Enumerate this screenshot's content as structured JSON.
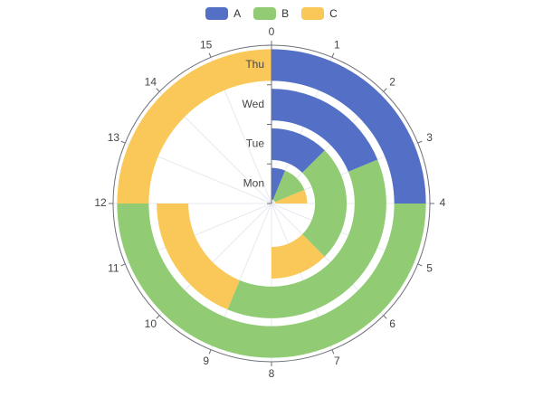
{
  "chart_data": {
    "type": "polar-stacked-bar",
    "angle_axis": {
      "min": 0,
      "max": 16,
      "ticks": [
        0,
        1,
        2,
        3,
        4,
        5,
        6,
        7,
        8,
        9,
        10,
        11,
        12,
        13,
        14,
        15
      ]
    },
    "categories": [
      "Mon",
      "Tue",
      "Wed",
      "Thu"
    ],
    "series": [
      {
        "name": "A",
        "values": [
          1,
          2,
          3,
          4
        ]
      },
      {
        "name": "B",
        "values": [
          2,
          4,
          6,
          8
        ]
      },
      {
        "name": "C",
        "values": [
          1,
          2,
          3,
          4
        ]
      }
    ],
    "legend_position": "top-center",
    "colors": {
      "A": "#5470c6",
      "B": "#91cc75",
      "C": "#fac858"
    }
  }
}
